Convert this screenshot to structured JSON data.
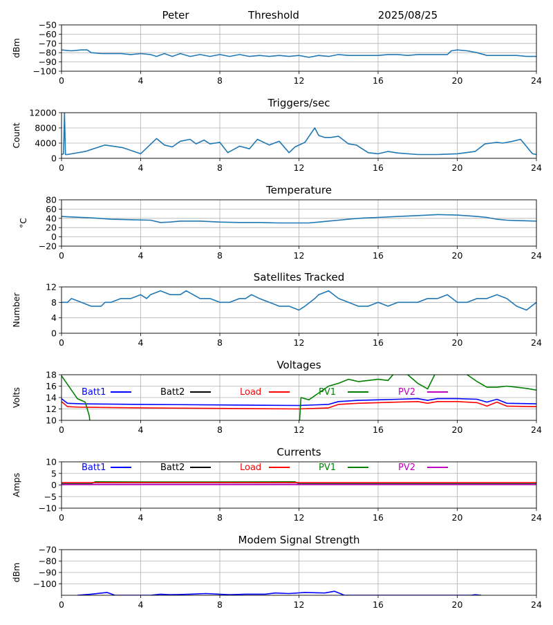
{
  "header": {
    "name": "Peter",
    "mode": "Threshold",
    "date": "2025/08/25"
  },
  "colors": {
    "series": "#1f77b4",
    "grid": "#b0b0b0",
    "batt1": "#0000ff",
    "batt2": "#000000",
    "load": "#ff0000",
    "pv1": "#008000",
    "pv2": "#bf00bf"
  },
  "chart_data": [
    {
      "type": "line",
      "title": "",
      "ylabel": "dBm",
      "xlim": [
        0,
        24
      ],
      "ylim": [
        -100,
        -50
      ],
      "xticks": [
        "0",
        "4",
        "8",
        "12",
        "16",
        "20",
        "24"
      ],
      "yticks": [
        "−50",
        "−60",
        "−70",
        "−80",
        "−90",
        "−100"
      ],
      "ytick_values": [
        -50,
        -60,
        -70,
        -80,
        -90,
        -100
      ],
      "grid": true,
      "series": [
        {
          "x": [
            0,
            0.5,
            1,
            1.3,
            1.5,
            2,
            3,
            3.5,
            4,
            4.5,
            4.8,
            5.2,
            5.6,
            6,
            6.5,
            7,
            7.5,
            8,
            8.5,
            9,
            9.5,
            10,
            10.5,
            11,
            11.5,
            12,
            12.5,
            13,
            13.5,
            14,
            14.5,
            15,
            15.5,
            16,
            16.5,
            17,
            17.5,
            18,
            18.5,
            19,
            19.5,
            19.7,
            20,
            20.5,
            21,
            21.5,
            22,
            22.5,
            23,
            23.5,
            24
          ],
          "y": [
            -77,
            -78,
            -77,
            -77,
            -80,
            -81,
            -81,
            -82,
            -81,
            -82,
            -84,
            -81,
            -84,
            -81,
            -84,
            -82,
            -84,
            -82,
            -84,
            -82,
            -84,
            -83,
            -84,
            -83,
            -84,
            -83,
            -85,
            -83,
            -84,
            -82,
            -83,
            -83,
            -83,
            -83,
            -82,
            -82,
            -83,
            -82,
            -82,
            -82,
            -82,
            -78,
            -77,
            -78,
            -80,
            -83,
            -83,
            -83,
            -83,
            -84,
            -84
          ]
        }
      ]
    },
    {
      "type": "line",
      "title": "Triggers/sec",
      "ylabel": "Count",
      "xlim": [
        0,
        24
      ],
      "ylim": [
        0,
        12000
      ],
      "xticks": [
        "0",
        "4",
        "8",
        "12",
        "16",
        "20",
        "24"
      ],
      "yticks": [
        "0",
        "4000",
        "8000",
        "12000"
      ],
      "ytick_values": [
        0,
        4000,
        8000,
        12000
      ],
      "grid": true,
      "series": [
        {
          "x": [
            0,
            0.1,
            0.15,
            0.2,
            0.3,
            1.2,
            2.2,
            3.1,
            4,
            4.8,
            5.2,
            5.6,
            6.0,
            6.5,
            6.8,
            7.2,
            7.5,
            8.0,
            8.4,
            9.0,
            9.5,
            9.9,
            10.5,
            11.0,
            11.5,
            11.8,
            12.3,
            12.8,
            13.0,
            13.3,
            13.6,
            14.0,
            14.5,
            14.9,
            15.5,
            16.0,
            16.5,
            17.0,
            18.0,
            19.0,
            20.0,
            20.9,
            21.4,
            22.0,
            22.3,
            22.8,
            23.2,
            23.8,
            24
          ],
          "y": [
            1000,
            1200,
            12000,
            1000,
            1000,
            1800,
            3500,
            2800,
            1200,
            5200,
            3500,
            3000,
            4500,
            5000,
            3800,
            4800,
            3800,
            4200,
            1500,
            3200,
            2500,
            5000,
            3500,
            4500,
            1500,
            3000,
            4200,
            8000,
            6000,
            5500,
            5500,
            5800,
            3800,
            3500,
            1500,
            1200,
            1800,
            1400,
            1000,
            1000,
            1200,
            1800,
            3800,
            4200,
            4000,
            4500,
            5000,
            1200,
            1000
          ]
        }
      ]
    },
    {
      "type": "line",
      "title": "Temperature",
      "ylabel": "°C",
      "xlim": [
        0,
        24
      ],
      "ylim": [
        -20,
        80
      ],
      "xticks": [
        "0",
        "4",
        "8",
        "12",
        "16",
        "20",
        "24"
      ],
      "yticks": [
        "−20",
        "0",
        "20",
        "40",
        "60",
        "80"
      ],
      "ytick_values": [
        -20,
        0,
        20,
        40,
        60,
        80
      ],
      "grid": true,
      "series": [
        {
          "x": [
            0,
            0.5,
            1.5,
            2.5,
            3.5,
            4.5,
            5,
            5.5,
            6,
            7,
            8,
            9,
            10,
            11,
            12,
            12.5,
            13,
            13.5,
            14,
            14.5,
            15,
            15.5,
            16,
            17,
            18,
            19,
            20,
            21,
            21.5,
            22,
            22.5,
            23,
            24
          ],
          "y": [
            44,
            43,
            41,
            38,
            37,
            36,
            31,
            32,
            34,
            34,
            32,
            31,
            31,
            30,
            30,
            30,
            32,
            34,
            36,
            38,
            40,
            41,
            42,
            44,
            46,
            48,
            47,
            44,
            42,
            38,
            36,
            35,
            34
          ]
        }
      ]
    },
    {
      "type": "line",
      "title": "Satellites Tracked",
      "ylabel": "Number",
      "xlim": [
        0,
        24
      ],
      "ylim": [
        0,
        12
      ],
      "xticks": [
        "0",
        "4",
        "8",
        "12",
        "16",
        "20",
        "24"
      ],
      "yticks": [
        "0",
        "4",
        "8",
        "12"
      ],
      "ytick_values": [
        0,
        4,
        8,
        12
      ],
      "grid": true,
      "series": [
        {
          "x": [
            0,
            0.3,
            0.5,
            1,
            1.5,
            2,
            2.2,
            2.5,
            3,
            3.5,
            4,
            4.3,
            4.5,
            5,
            5.5,
            6,
            6.3,
            7,
            7.5,
            8,
            8.5,
            9,
            9.3,
            9.6,
            10,
            10.5,
            11,
            11.5,
            12,
            12.3,
            12.8,
            13,
            13.5,
            14,
            14.5,
            15,
            15.5,
            16,
            16.5,
            17,
            17.5,
            18,
            18.5,
            19,
            19.5,
            20,
            20.5,
            21,
            21.5,
            22,
            22.5,
            23,
            23.5,
            24
          ],
          "y": [
            8,
            8,
            9,
            8,
            7,
            7,
            8,
            8,
            9,
            9,
            10,
            9,
            10,
            11,
            10,
            10,
            11,
            9,
            9,
            8,
            8,
            9,
            9,
            10,
            9,
            8,
            7,
            7,
            6,
            7,
            9,
            10,
            11,
            9,
            8,
            7,
            7,
            8,
            7,
            8,
            8,
            8,
            9,
            9,
            10,
            8,
            8,
            9,
            9,
            10,
            9,
            7,
            6,
            8
          ]
        }
      ]
    },
    {
      "type": "line",
      "title": "Voltages",
      "ylabel": "Volts",
      "xlim": [
        0,
        24
      ],
      "ylim": [
        10,
        18
      ],
      "xticks": [
        "0",
        "4",
        "8",
        "12",
        "16",
        "20",
        "24"
      ],
      "yticks": [
        "10",
        "12",
        "14",
        "16",
        "18"
      ],
      "ytick_values": [
        10,
        12,
        14,
        16,
        18
      ],
      "grid": true,
      "legend": [
        "Batt1",
        "Batt2",
        "Load",
        "PV1",
        "PV2"
      ],
      "series": [
        {
          "name": "Batt1",
          "color_key": "batt1",
          "x": [
            0,
            0.3,
            1,
            4,
            8,
            12,
            13.5,
            14,
            15,
            16,
            17,
            18,
            18.5,
            19,
            20,
            21,
            21.5,
            22,
            22.5,
            24
          ],
          "y": [
            13.8,
            13.0,
            12.9,
            12.8,
            12.7,
            12.6,
            12.8,
            13.3,
            13.5,
            13.6,
            13.7,
            13.8,
            13.5,
            13.8,
            13.8,
            13.7,
            13.2,
            13.7,
            13.0,
            12.9
          ]
        },
        {
          "name": "Load",
          "color_key": "load",
          "x": [
            0,
            0.3,
            1,
            4,
            8,
            12,
            13.5,
            14,
            15,
            16,
            17,
            18,
            18.5,
            19,
            20,
            21,
            21.5,
            22,
            22.5,
            24
          ],
          "y": [
            13.3,
            12.4,
            12.3,
            12.2,
            12.1,
            12.0,
            12.2,
            12.8,
            13.0,
            13.1,
            13.2,
            13.3,
            13.0,
            13.3,
            13.3,
            13.1,
            12.5,
            13.2,
            12.5,
            12.4
          ]
        },
        {
          "name": "PV1",
          "color_key": "pv1",
          "x": [
            0,
            0.4,
            0.8,
            1.2,
            1.4,
            1.5,
            12.0,
            12.1,
            12.5,
            13,
            13.5,
            14,
            14.5,
            15,
            15.5,
            16,
            16.5,
            17,
            17.5,
            18,
            18.5,
            19,
            20,
            20.5,
            21,
            21.5,
            22,
            22.5,
            23,
            23.5,
            24
          ],
          "y": [
            17.8,
            15.8,
            13.8,
            13.2,
            10.8,
            8.0,
            8.0,
            14.0,
            13.6,
            14.8,
            16.0,
            16.5,
            17.2,
            16.8,
            17.0,
            17.2,
            17.0,
            19.0,
            18.0,
            16.5,
            15.5,
            19.0,
            19.0,
            18.0,
            16.8,
            15.8,
            15.8,
            16.0,
            15.8,
            15.6,
            15.3
          ]
        }
      ]
    },
    {
      "type": "line",
      "title": "Currents",
      "ylabel": "Amps",
      "xlim": [
        0,
        24
      ],
      "ylim": [
        -10,
        10
      ],
      "xticks": [
        "0",
        "4",
        "8",
        "12",
        "16",
        "20",
        "24"
      ],
      "yticks": [
        "−10",
        "−5",
        "0",
        "5",
        "10"
      ],
      "ytick_values": [
        -10,
        -5,
        0,
        5,
        10
      ],
      "grid": true,
      "legend": [
        "Batt1",
        "Batt2",
        "Load",
        "PV1",
        "PV2"
      ],
      "series": [
        {
          "name": "PV1",
          "color_key": "pv1",
          "x": [
            0,
            1.5,
            1.7,
            4,
            8,
            11.5,
            11.8,
            12,
            24
          ],
          "y": [
            0.5,
            0.5,
            1.4,
            1.3,
            1.3,
            1.4,
            1.4,
            0.5,
            0.5
          ]
        },
        {
          "name": "Load",
          "color_key": "load",
          "x": [
            0,
            24
          ],
          "y": [
            1.0,
            1.0
          ]
        },
        {
          "name": "Batt1",
          "color_key": "batt1",
          "x": [
            0,
            24
          ],
          "y": [
            0.3,
            0.3
          ]
        },
        {
          "name": "PV2",
          "color_key": "pv2",
          "x": [
            0,
            24
          ],
          "y": [
            0.2,
            0.2
          ]
        }
      ]
    },
    {
      "type": "line",
      "title": "Modem Signal Strength",
      "ylabel": "dBm",
      "xlim": [
        0,
        24
      ],
      "ylim": [
        -110,
        -70
      ],
      "xticks": [
        "0",
        "4",
        "8",
        "12",
        "16",
        "20",
        "24"
      ],
      "yticks": [
        "−70",
        "−80",
        "−90",
        "−100"
      ],
      "ytick_values": [
        -70,
        -80,
        -90,
        -100
      ],
      "grid": true,
      "series": [
        {
          "name": "",
          "color_key": "batt1",
          "x": [
            0.8,
            1.5,
            2.3,
            2.7,
            4.5,
            5.0,
            5.5,
            6.5,
            7.3,
            8.5,
            9.3,
            10.3,
            10.8,
            11.5,
            12.3,
            13.3,
            13.8,
            14.3,
            20.7,
            20.9,
            21.2
          ],
          "y": [
            -110,
            -109,
            -107.5,
            -110,
            -110,
            -109,
            -109.5,
            -109,
            -108.5,
            -109.5,
            -109,
            -109,
            -108,
            -108.5,
            -107.5,
            -108,
            -106.5,
            -110,
            -110,
            -109.5,
            -110
          ]
        }
      ]
    }
  ]
}
